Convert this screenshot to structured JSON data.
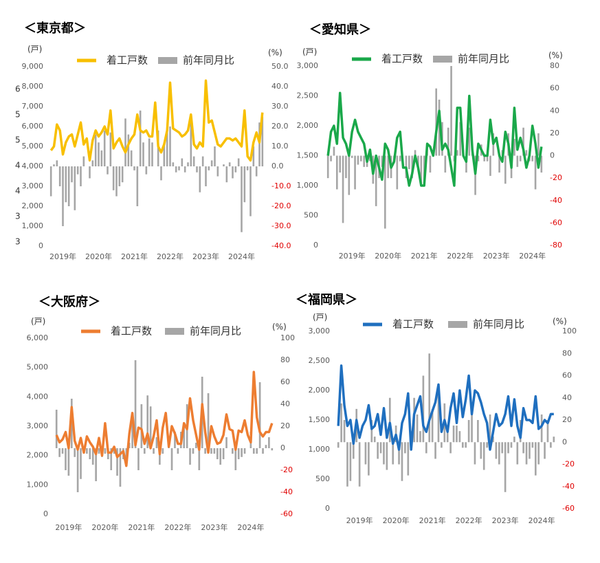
{
  "chart_data": [
    {
      "type": "combo",
      "title": "＜東京都＞",
      "y_unit": "(戸)",
      "y2_unit": "(%)",
      "edge_labels": [
        "6",
        "5",
        "5",
        "4",
        "4",
        "3",
        "3"
      ],
      "categories": [
        null,
        null,
        null,
        null,
        "2019年",
        null,
        null,
        null,
        null,
        null,
        null,
        null,
        null,
        null,
        null,
        null,
        "2020年",
        null,
        null,
        null,
        null,
        null,
        null,
        null,
        null,
        null,
        null,
        null,
        "2021年",
        null,
        null,
        null,
        null,
        null,
        null,
        null,
        null,
        null,
        null,
        null,
        "2022年",
        null,
        null,
        null,
        null,
        null,
        null,
        null,
        null,
        null,
        null,
        null,
        "2023年",
        null,
        null,
        null,
        null,
        null,
        null,
        null,
        null,
        null,
        null,
        null,
        "2024年",
        null,
        null,
        null,
        null,
        null,
        null,
        null
      ],
      "series": [
        {
          "name": "着工戸数",
          "mark": "line",
          "color": "#f8bf00",
          "values": [
            4800,
            5000,
            6100,
            5800,
            4600,
            5200,
            5500,
            5600,
            5000,
            5600,
            6200,
            5100,
            5400,
            4300,
            5300,
            5800,
            5500,
            5700,
            6000,
            5600,
            6800,
            4900,
            5200,
            5400,
            5000,
            4700,
            5100,
            5400,
            5600,
            6600,
            5800,
            5700,
            5800,
            5500,
            5500,
            7200,
            5000,
            4700,
            5100,
            5800,
            8200,
            5900,
            5800,
            5700,
            5500,
            5600,
            5800,
            6600,
            5100,
            4900,
            5200,
            5000,
            8300,
            6200,
            6300,
            5700,
            5100,
            5000,
            5200,
            5400,
            5400,
            5300,
            5400,
            5200,
            5000,
            6800,
            4500,
            4300,
            5200,
            5700,
            5200,
            6700
          ]
        },
        {
          "name": "前年同月比",
          "mark": "bar",
          "axis": "y2",
          "color": "#a6a6a6",
          "values": [
            -15,
            1,
            3,
            -10,
            -30,
            -18,
            -20,
            -8,
            -22,
            -4,
            -10,
            5,
            0,
            -6,
            3,
            16,
            12,
            8,
            18,
            -4,
            17,
            -12,
            -15,
            -10,
            -8,
            24,
            16,
            8,
            -2,
            -20,
            28,
            12,
            -4,
            14,
            12,
            0,
            18,
            -7,
            12,
            18,
            20,
            2,
            -3,
            -2,
            4,
            -3,
            2,
            22,
            5,
            -3,
            -13,
            5,
            -10,
            -2,
            3,
            10,
            -5,
            0,
            1,
            -8,
            2,
            -6,
            -3,
            4,
            -33,
            -18,
            -2,
            -25,
            10,
            -5,
            22,
            25
          ]
        }
      ],
      "ylim": [
        0,
        9000
      ],
      "yticks": [
        0,
        {
          "value": 1000,
          "label": "1,000"
        },
        {
          "value": 2000,
          "label": "2,000"
        },
        {
          "value": 3000,
          "label": "3,000"
        },
        {
          "value": 4000,
          "label": "4,000"
        },
        {
          "value": 5000,
          "label": "5,000"
        },
        {
          "value": 6000,
          "label": "6,000"
        },
        {
          "value": 7000,
          "label": "7,000"
        },
        {
          "value": 8000,
          "label": "8,000"
        },
        {
          "value": 9000,
          "label": "9,000"
        }
      ],
      "y2lim": [
        -40,
        50
      ],
      "y2ticks": [
        {
          "value": -40,
          "label": "-40.0"
        },
        {
          "value": -30,
          "label": "-30.0"
        },
        {
          "value": -20,
          "label": "-20.0"
        },
        {
          "value": -10,
          "label": "-10.0"
        },
        {
          "value": 0,
          "label": "0.0"
        },
        {
          "value": 10,
          "label": "10.0"
        },
        {
          "value": 20,
          "label": "20.0"
        },
        {
          "value": 30,
          "label": "30.0"
        },
        {
          "value": 40,
          "label": "40.0"
        },
        {
          "value": 50,
          "label": "50.0"
        }
      ],
      "y2_negative_color": "#e00000"
    },
    {
      "type": "combo",
      "title": "＜愛知県＞",
      "y_unit": "(戸)",
      "y2_unit": "(%)",
      "categories": [
        null,
        null,
        null,
        null,
        null,
        null,
        null,
        null,
        "2019年",
        null,
        null,
        null,
        null,
        null,
        null,
        null,
        null,
        null,
        null,
        null,
        "2020年",
        null,
        null,
        null,
        null,
        null,
        null,
        null,
        null,
        null,
        null,
        null,
        "2021年",
        null,
        null,
        null,
        null,
        null,
        null,
        null,
        null,
        null,
        null,
        null,
        "2022年",
        null,
        null,
        null,
        null,
        null,
        null,
        null,
        null,
        null,
        null,
        null,
        "2023年",
        null,
        null,
        null,
        null,
        null,
        null,
        null,
        null,
        null,
        null,
        null,
        "2024年",
        null,
        null,
        null
      ],
      "series": [
        {
          "name": "着工戸数",
          "mark": "line",
          "color": "#1aa84a",
          "values": [
            1500,
            1900,
            2000,
            1700,
            2550,
            1800,
            1700,
            1500,
            1900,
            2100,
            1900,
            1800,
            1700,
            1400,
            1600,
            1200,
            1500,
            1300,
            1100,
            1700,
            1600,
            1300,
            1400,
            1800,
            1900,
            1300,
            1300,
            1000,
            1200,
            1500,
            1300,
            1000,
            1000,
            1700,
            1650,
            1500,
            1900,
            2250,
            1600,
            1700,
            1600,
            1300,
            1000,
            2300,
            2300,
            1500,
            1400,
            2500,
            1600,
            1200,
            1700,
            1600,
            1500,
            1500,
            2100,
            1700,
            1800,
            1500,
            1400,
            1900,
            1700,
            1300,
            2300,
            1600,
            1800,
            1600,
            1300,
            1500,
            2000,
            1700,
            1300,
            1650
          ]
        },
        {
          "name": "前年同月比",
          "mark": "bar",
          "axis": "y2",
          "color": "#a6a6a6",
          "values": [
            -20,
            -5,
            8,
            -30,
            -15,
            -60,
            -20,
            -35,
            -2,
            -30,
            -8,
            -5,
            -10,
            -10,
            -5,
            -25,
            -45,
            -20,
            -10,
            -65,
            -20,
            -20,
            -5,
            -30,
            -5,
            0,
            -20,
            -12,
            -20,
            5,
            -10,
            -25,
            -25,
            10,
            -15,
            5,
            60,
            50,
            30,
            -15,
            25,
            80,
            -5,
            5,
            30,
            5,
            -15,
            25,
            10,
            -35,
            -5,
            10,
            -5,
            -5,
            -18,
            20,
            0,
            -15,
            5,
            -25,
            20,
            -20,
            15,
            -10,
            -5,
            25,
            5,
            -5,
            -5,
            -30,
            20,
            -15
          ]
        }
      ],
      "ylim": [
        0,
        3000
      ],
      "yticks": [
        0,
        500,
        {
          "value": 1000,
          "label": "1,000"
        },
        {
          "value": 1500,
          "label": "1,500"
        },
        {
          "value": 2000,
          "label": "2,000"
        },
        {
          "value": 2500,
          "label": "2,500"
        },
        {
          "value": 3000,
          "label": "3,000"
        }
      ],
      "y2lim": [
        -80,
        80
      ],
      "y2ticks": [
        -80,
        -60,
        -40,
        -20,
        0,
        20,
        40,
        60,
        80
      ],
      "y2_negative_color": "#e00000"
    },
    {
      "type": "combo",
      "title": "＜大阪府＞",
      "y_unit": "(戸)",
      "y2_unit": "(%)",
      "categories": [
        null,
        null,
        null,
        null,
        "2019年",
        null,
        null,
        null,
        null,
        null,
        null,
        null,
        null,
        null,
        null,
        null,
        "2020年",
        null,
        null,
        null,
        null,
        null,
        null,
        null,
        null,
        null,
        null,
        null,
        "2021年",
        null,
        null,
        null,
        null,
        null,
        null,
        null,
        null,
        null,
        null,
        null,
        "2022年",
        null,
        null,
        null,
        null,
        null,
        null,
        null,
        null,
        null,
        null,
        null,
        "2023年",
        null,
        null,
        null,
        null,
        null,
        null,
        null,
        null,
        null,
        null,
        null,
        "2024年",
        null,
        null,
        null,
        null,
        null,
        null,
        null
      ],
      "series": [
        {
          "name": "着工戸数",
          "mark": "line",
          "color": "#ed7d31",
          "values": [
            2700,
            2450,
            2550,
            2800,
            2250,
            3650,
            2500,
            2200,
            2600,
            2100,
            2650,
            2450,
            2300,
            2050,
            2600,
            2000,
            3100,
            2100,
            2100,
            2300,
            1950,
            2050,
            2150,
            1650,
            2750,
            3450,
            2350,
            2950,
            2900,
            2400,
            2750,
            2250,
            2650,
            3200,
            2050,
            2950,
            3450,
            2300,
            3000,
            2750,
            2400,
            2400,
            3100,
            2900,
            3950,
            3200,
            2700,
            2200,
            3750,
            2800,
            2100,
            3000,
            2650,
            2400,
            2450,
            2700,
            3400,
            2900,
            2850,
            2200,
            2850,
            2800,
            3200,
            2700,
            2450,
            4850,
            3300,
            2800,
            2650,
            2800,
            2800,
            3100
          ]
        },
        {
          "name": "前年同月比",
          "mark": "bar",
          "axis": "y2",
          "color": "#a6a6a6",
          "values": [
            35,
            -8,
            -5,
            -20,
            -25,
            45,
            -8,
            -40,
            -28,
            -5,
            -5,
            -10,
            -15,
            -30,
            -5,
            -8,
            -5,
            -10,
            -20,
            -5,
            -25,
            -35,
            -10,
            -10,
            5,
            30,
            80,
            -20,
            40,
            -5,
            48,
            38,
            -5,
            10,
            -15,
            -5,
            0,
            10,
            -20,
            15,
            -5,
            15,
            20,
            40,
            -15,
            -5,
            5,
            -20,
            65,
            -5,
            50,
            -5,
            -5,
            -10,
            -15,
            -10,
            10,
            0,
            -5,
            -20,
            -10,
            -8,
            -5,
            0,
            15,
            -5,
            -5,
            60,
            -5,
            3,
            10,
            -2
          ]
        }
      ],
      "ylim": [
        0,
        6000
      ],
      "yticks": [
        0,
        {
          "value": 1000,
          "label": "1,000"
        },
        {
          "value": 2000,
          "label": "2,000"
        },
        {
          "value": 3000,
          "label": "3,000"
        },
        {
          "value": 4000,
          "label": "4,000"
        },
        {
          "value": 5000,
          "label": "5,000"
        },
        {
          "value": 6000,
          "label": "6,000"
        }
      ],
      "y2lim": [
        -60,
        100
      ],
      "y2ticks": [
        -60,
        -40,
        -20,
        0,
        20,
        40,
        60,
        80,
        100
      ],
      "y2_negative_color": "#e00000"
    },
    {
      "type": "combo",
      "title": "＜福岡県＞",
      "y_unit": "(戸)",
      "y2_unit": "(%)",
      "categories": [
        null,
        null,
        null,
        null,
        null,
        null,
        null,
        "2019年",
        null,
        null,
        null,
        null,
        null,
        null,
        null,
        null,
        null,
        null,
        null,
        "2020年",
        null,
        null,
        null,
        null,
        null,
        null,
        null,
        null,
        null,
        null,
        null,
        "2021年",
        null,
        null,
        null,
        null,
        null,
        null,
        null,
        null,
        null,
        null,
        null,
        "2022年",
        null,
        null,
        null,
        null,
        null,
        null,
        null,
        null,
        null,
        null,
        null,
        "2023年",
        null,
        null,
        null,
        null,
        null,
        null,
        null,
        null,
        null,
        null,
        null,
        "2024年",
        null,
        null,
        null,
        null
      ],
      "series": [
        {
          "name": "着工戸数",
          "mark": "line",
          "color": "#1f6fbf",
          "values": [
            1400,
            2420,
            1750,
            1400,
            1500,
            1100,
            1500,
            1200,
            1400,
            1500,
            1750,
            1350,
            1400,
            1600,
            1250,
            1700,
            1200,
            1450,
            1100,
            1250,
            1000,
            1450,
            1600,
            1950,
            1000,
            1600,
            1750,
            1900,
            1400,
            1300,
            1500,
            1650,
            1800,
            2100,
            1300,
            1500,
            1300,
            1700,
            1950,
            1450,
            2000,
            1550,
            1850,
            2250,
            1600,
            2000,
            1950,
            1800,
            1600,
            1450,
            1000,
            1300,
            1600,
            1400,
            1450,
            1600,
            1900,
            1400,
            1850,
            1400,
            1200,
            1700,
            1500,
            1500,
            1450,
            1900,
            1350,
            1400,
            1500,
            1450,
            1600,
            1600
          ]
        },
        {
          "name": "前年同月比",
          "mark": "bar",
          "axis": "y2",
          "color": "#a6a6a6",
          "values": [
            -5,
            35,
            20,
            -40,
            -35,
            -15,
            30,
            -40,
            0,
            -20,
            -30,
            20,
            5,
            -15,
            -10,
            -20,
            -25,
            40,
            -20,
            15,
            -20,
            -35,
            -10,
            -30,
            10,
            40,
            25,
            10,
            60,
            -10,
            80,
            30,
            -15,
            45,
            -5,
            35,
            15,
            -10,
            15,
            15,
            10,
            -5,
            -5,
            20,
            25,
            -20,
            20,
            -15,
            -25,
            -5,
            25,
            5,
            -15,
            -20,
            -10,
            -45,
            -10,
            -5,
            5,
            -20,
            20,
            -10,
            -20,
            -15,
            -5,
            -30,
            -20,
            25,
            -15,
            20,
            -5,
            5
          ]
        }
      ],
      "ylim": [
        0,
        3000
      ],
      "yticks": [
        0,
        500,
        {
          "value": 1000,
          "label": "1,000"
        },
        {
          "value": 1500,
          "label": "1,500"
        },
        {
          "value": 2000,
          "label": "2,000"
        },
        {
          "value": 2500,
          "label": "2,500"
        },
        {
          "value": 3000,
          "label": "3,000"
        }
      ],
      "y2lim": [
        -60,
        100
      ],
      "y2ticks": [
        -60,
        -40,
        -20,
        0,
        20,
        40,
        60,
        80,
        100
      ],
      "y2_negative_color": "#e00000"
    }
  ]
}
